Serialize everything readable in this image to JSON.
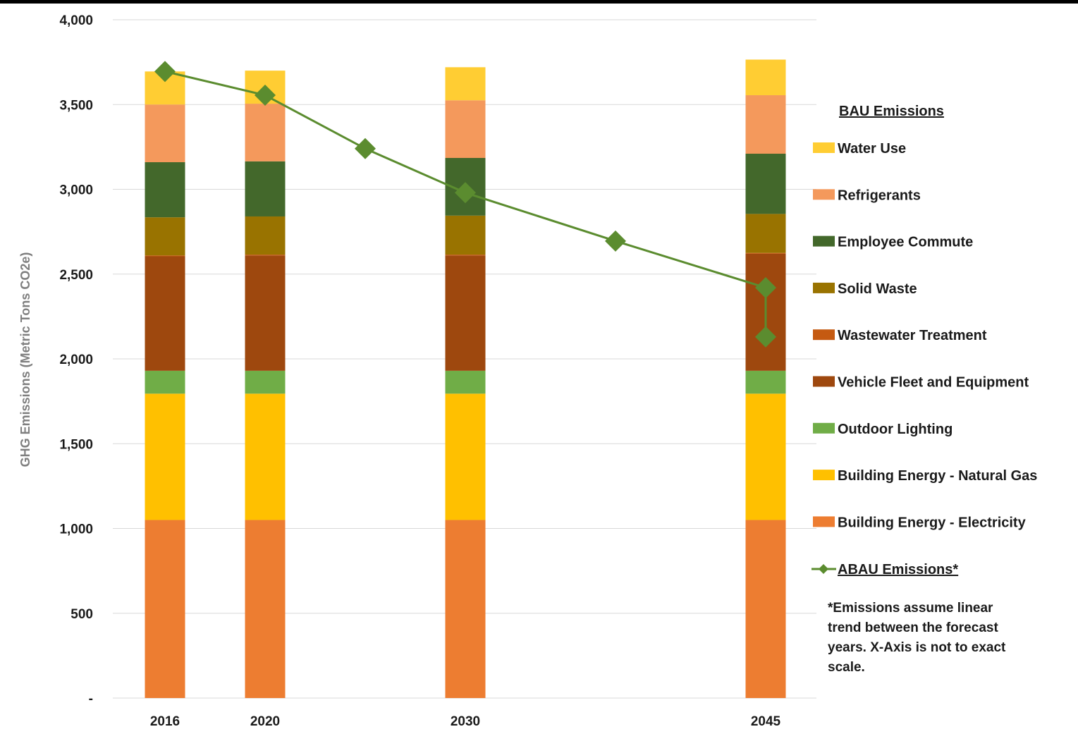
{
  "chart_data": {
    "type": "bar",
    "stacked": true,
    "categories": [
      "2016",
      "2020",
      "2030",
      "2045"
    ],
    "ylabel": "GHG Emissions (Metric Tons CO2e)",
    "ylim": [
      0,
      4000
    ],
    "yticks": [
      0,
      500,
      1000,
      1500,
      2000,
      2500,
      3000,
      3500,
      4000
    ],
    "ytick_labels": [
      "-",
      "500",
      "1,000",
      "1,500",
      "2,000",
      "2,500",
      "3,000",
      "3,500",
      "4,000"
    ],
    "grid": true,
    "legend_title": "BAU Emissions",
    "legend_position": "right",
    "series": [
      {
        "name": "Building Energy - Electricity",
        "color": "#ED7D31",
        "values": [
          1050,
          1050,
          1050,
          1050
        ]
      },
      {
        "name": "Building Energy - Natural Gas",
        "color": "#FFC000",
        "values": [
          745,
          745,
          745,
          745
        ]
      },
      {
        "name": "Outdoor Lighting",
        "color": "#70AD47",
        "values": [
          135,
          135,
          135,
          135
        ]
      },
      {
        "name": "Vehicle Fleet and Equipment",
        "color": "#9E480E",
        "values": [
          675,
          680,
          680,
          690
        ]
      },
      {
        "name": "Wastewater Treatment",
        "color": "#C55A11",
        "values": [
          5,
          5,
          5,
          5
        ]
      },
      {
        "name": "Solid Waste",
        "color": "#997300",
        "values": [
          225,
          225,
          230,
          230
        ]
      },
      {
        "name": "Employee Commute",
        "color": "#43682B",
        "values": [
          325,
          325,
          340,
          355
        ]
      },
      {
        "name": "Refrigerants",
        "color": "#F4995C",
        "values": [
          340,
          340,
          340,
          345
        ]
      },
      {
        "name": "Water Use",
        "color": "#FFCD33",
        "values": [
          195,
          195,
          195,
          210
        ]
      }
    ],
    "line_series": {
      "name": "ABAU Emissions*",
      "color": "#5B8C2F",
      "marker": "diamond",
      "x": [
        0,
        1,
        1.5,
        2,
        2.5,
        3,
        3.5
      ],
      "values": [
        3695,
        3555,
        3240,
        2980,
        2695,
        2420,
        2130
      ]
    },
    "note_lines": [
      "*Emissions assume linear",
      "trend between the forecast",
      "years. X-Axis is not to exact",
      "scale."
    ]
  }
}
